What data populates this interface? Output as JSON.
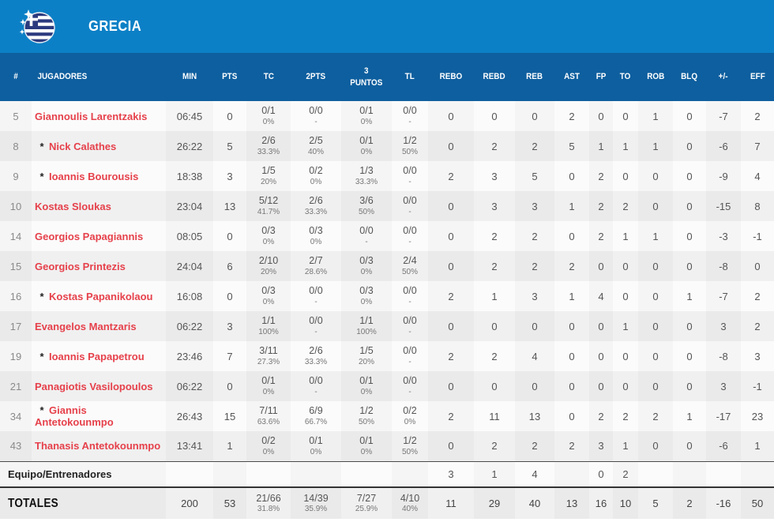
{
  "team": {
    "name": "GRECIA",
    "flag_icon": "greece-flag"
  },
  "colors": {
    "topbar": "#0c80c6",
    "header_bar": "#0e5f9f",
    "player_name": "#e6414b",
    "flag_navy": "#2b3a7e"
  },
  "starter_marker": "*",
  "columns": [
    {
      "key": "num",
      "label": "#"
    },
    {
      "key": "name",
      "label": "JUGADORES"
    },
    {
      "key": "min",
      "label": "MIN"
    },
    {
      "key": "pts",
      "label": "PTS"
    },
    {
      "key": "tc",
      "label": "TC"
    },
    {
      "key": "p2",
      "label": "2PTS"
    },
    {
      "key": "p3",
      "label": "3\nPUNTOS"
    },
    {
      "key": "tl",
      "label": "TL"
    },
    {
      "key": "rebo",
      "label": "REBO"
    },
    {
      "key": "rebd",
      "label": "REBD"
    },
    {
      "key": "reb",
      "label": "REB"
    },
    {
      "key": "ast",
      "label": "AST"
    },
    {
      "key": "fp",
      "label": "FP"
    },
    {
      "key": "to",
      "label": "TO"
    },
    {
      "key": "rob",
      "label": "ROB"
    },
    {
      "key": "blq",
      "label": "BLQ"
    },
    {
      "key": "pm",
      "label": "+/-"
    },
    {
      "key": "eff",
      "label": "EFF"
    }
  ],
  "players": [
    {
      "num": "5",
      "starter": false,
      "name": "Giannoulis Larentzakis",
      "min": "06:45",
      "pts": "0",
      "tc": "0/1",
      "tc_pct": "0%",
      "p2": "0/0",
      "p2_pct": "-",
      "p3": "0/1",
      "p3_pct": "0%",
      "tl": "0/0",
      "tl_pct": "-",
      "rebo": "0",
      "rebd": "0",
      "reb": "0",
      "ast": "2",
      "fp": "0",
      "to": "0",
      "rob": "1",
      "blq": "0",
      "pm": "-7",
      "eff": "2"
    },
    {
      "num": "8",
      "starter": true,
      "name": "Nick Calathes",
      "min": "26:22",
      "pts": "5",
      "tc": "2/6",
      "tc_pct": "33.3%",
      "p2": "2/5",
      "p2_pct": "40%",
      "p3": "0/1",
      "p3_pct": "0%",
      "tl": "1/2",
      "tl_pct": "50%",
      "rebo": "0",
      "rebd": "2",
      "reb": "2",
      "ast": "5",
      "fp": "1",
      "to": "1",
      "rob": "1",
      "blq": "0",
      "pm": "-6",
      "eff": "7"
    },
    {
      "num": "9",
      "starter": true,
      "name": "Ioannis Bourousis",
      "min": "18:38",
      "pts": "3",
      "tc": "1/5",
      "tc_pct": "20%",
      "p2": "0/2",
      "p2_pct": "0%",
      "p3": "1/3",
      "p3_pct": "33.3%",
      "tl": "0/0",
      "tl_pct": "-",
      "rebo": "2",
      "rebd": "3",
      "reb": "5",
      "ast": "0",
      "fp": "2",
      "to": "0",
      "rob": "0",
      "blq": "0",
      "pm": "-9",
      "eff": "4"
    },
    {
      "num": "10",
      "starter": false,
      "name": "Kostas Sloukas",
      "min": "23:04",
      "pts": "13",
      "tc": "5/12",
      "tc_pct": "41.7%",
      "p2": "2/6",
      "p2_pct": "33.3%",
      "p3": "3/6",
      "p3_pct": "50%",
      "tl": "0/0",
      "tl_pct": "-",
      "rebo": "0",
      "rebd": "3",
      "reb": "3",
      "ast": "1",
      "fp": "2",
      "to": "2",
      "rob": "0",
      "blq": "0",
      "pm": "-15",
      "eff": "8"
    },
    {
      "num": "14",
      "starter": false,
      "name": "Georgios Papagiannis",
      "min": "08:05",
      "pts": "0",
      "tc": "0/3",
      "tc_pct": "0%",
      "p2": "0/3",
      "p2_pct": "0%",
      "p3": "0/0",
      "p3_pct": "-",
      "tl": "0/0",
      "tl_pct": "-",
      "rebo": "0",
      "rebd": "2",
      "reb": "2",
      "ast": "0",
      "fp": "2",
      "to": "1",
      "rob": "1",
      "blq": "0",
      "pm": "-3",
      "eff": "-1"
    },
    {
      "num": "15",
      "starter": false,
      "name": "Georgios Printezis",
      "min": "24:04",
      "pts": "6",
      "tc": "2/10",
      "tc_pct": "20%",
      "p2": "2/7",
      "p2_pct": "28.6%",
      "p3": "0/3",
      "p3_pct": "0%",
      "tl": "2/4",
      "tl_pct": "50%",
      "rebo": "0",
      "rebd": "2",
      "reb": "2",
      "ast": "2",
      "fp": "0",
      "to": "0",
      "rob": "0",
      "blq": "0",
      "pm": "-8",
      "eff": "0"
    },
    {
      "num": "16",
      "starter": true,
      "name": "Kostas Papanikolaou",
      "min": "16:08",
      "pts": "0",
      "tc": "0/3",
      "tc_pct": "0%",
      "p2": "0/0",
      "p2_pct": "-",
      "p3": "0/3",
      "p3_pct": "0%",
      "tl": "0/0",
      "tl_pct": "-",
      "rebo": "2",
      "rebd": "1",
      "reb": "3",
      "ast": "1",
      "fp": "4",
      "to": "0",
      "rob": "0",
      "blq": "1",
      "pm": "-7",
      "eff": "2"
    },
    {
      "num": "17",
      "starter": false,
      "name": "Evangelos Mantzaris",
      "min": "06:22",
      "pts": "3",
      "tc": "1/1",
      "tc_pct": "100%",
      "p2": "0/0",
      "p2_pct": "-",
      "p3": "1/1",
      "p3_pct": "100%",
      "tl": "0/0",
      "tl_pct": "-",
      "rebo": "0",
      "rebd": "0",
      "reb": "0",
      "ast": "0",
      "fp": "0",
      "to": "1",
      "rob": "0",
      "blq": "0",
      "pm": "3",
      "eff": "2"
    },
    {
      "num": "19",
      "starter": true,
      "name": "Ioannis Papapetrou",
      "min": "23:46",
      "pts": "7",
      "tc": "3/11",
      "tc_pct": "27.3%",
      "p2": "2/6",
      "p2_pct": "33.3%",
      "p3": "1/5",
      "p3_pct": "20%",
      "tl": "0/0",
      "tl_pct": "-",
      "rebo": "2",
      "rebd": "2",
      "reb": "4",
      "ast": "0",
      "fp": "0",
      "to": "0",
      "rob": "0",
      "blq": "0",
      "pm": "-8",
      "eff": "3"
    },
    {
      "num": "21",
      "starter": false,
      "name": "Panagiotis Vasilopoulos",
      "min": "06:22",
      "pts": "0",
      "tc": "0/1",
      "tc_pct": "0%",
      "p2": "0/0",
      "p2_pct": "-",
      "p3": "0/1",
      "p3_pct": "0%",
      "tl": "0/0",
      "tl_pct": "-",
      "rebo": "0",
      "rebd": "0",
      "reb": "0",
      "ast": "0",
      "fp": "0",
      "to": "0",
      "rob": "0",
      "blq": "0",
      "pm": "3",
      "eff": "-1"
    },
    {
      "num": "34",
      "starter": true,
      "name": "Giannis Antetokounmpo",
      "min": "26:43",
      "pts": "15",
      "tc": "7/11",
      "tc_pct": "63.6%",
      "p2": "6/9",
      "p2_pct": "66.7%",
      "p3": "1/2",
      "p3_pct": "50%",
      "tl": "0/2",
      "tl_pct": "0%",
      "rebo": "2",
      "rebd": "11",
      "reb": "13",
      "ast": "0",
      "fp": "2",
      "to": "2",
      "rob": "2",
      "blq": "1",
      "pm": "-17",
      "eff": "23"
    },
    {
      "num": "43",
      "starter": false,
      "name": "Thanasis Antetokounmpo",
      "min": "13:41",
      "pts": "1",
      "tc": "0/2",
      "tc_pct": "0%",
      "p2": "0/1",
      "p2_pct": "0%",
      "p3": "0/1",
      "p3_pct": "0%",
      "tl": "1/2",
      "tl_pct": "50%",
      "rebo": "0",
      "rebd": "2",
      "reb": "2",
      "ast": "2",
      "fp": "3",
      "to": "1",
      "rob": "0",
      "blq": "0",
      "pm": "-6",
      "eff": "1"
    }
  ],
  "team_row": {
    "label": "Equipo/Entrenadores",
    "min": "",
    "pts": "",
    "tc": "",
    "p2": "",
    "p3": "",
    "tl": "",
    "rebo": "3",
    "rebd": "1",
    "reb": "4",
    "ast": "",
    "fp": "0",
    "to": "2",
    "rob": "",
    "blq": "",
    "pm": "",
    "eff": ""
  },
  "totals": {
    "label": "TOTALES",
    "min": "200",
    "pts": "53",
    "tc": "21/66",
    "tc_pct": "31.8%",
    "p2": "14/39",
    "p2_pct": "35.9%",
    "p3": "7/27",
    "p3_pct": "25.9%",
    "tl": "4/10",
    "tl_pct": "40%",
    "rebo": "11",
    "rebd": "29",
    "reb": "40",
    "ast": "13",
    "fp": "16",
    "to": "10",
    "rob": "5",
    "blq": "2",
    "pm": "-16",
    "eff": "50"
  }
}
